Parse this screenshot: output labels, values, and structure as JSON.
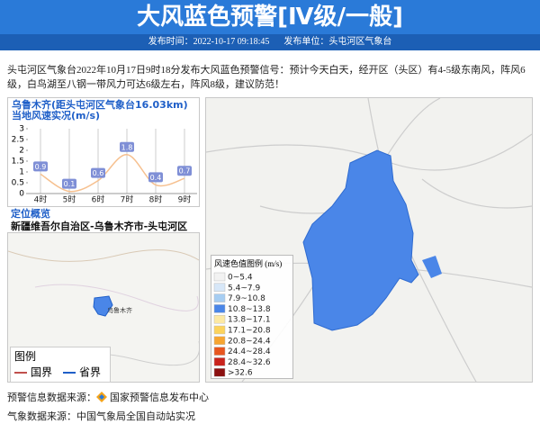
{
  "header": {
    "title": "大风蓝色预警[Ⅳ级/一般]",
    "publish_time": "发布时间：2022-10-17 09:18:45",
    "publisher": "发布单位：头屯河区气象台"
  },
  "body": "头屯河区气象台2022年10月17日9时18分发布大风蓝色预警信号：预计今天白天，经开区（头区）有4-5级东南风，阵风6级，白鸟湖至八钢一带风力可达6级左右，阵风8级，建议防范！",
  "chart_data": {
    "type": "line",
    "title": "乌鲁木齐(距头屯河区气象台16.03km)当地风速实况(m/s)",
    "categories": [
      "4时",
      "5时",
      "6时",
      "7时",
      "8时",
      "9时"
    ],
    "values": [
      0.9,
      0.1,
      0.6,
      1.8,
      0.4,
      0.7
    ],
    "color": "#f6c08f",
    "label_color": "#7f8fd6",
    "ylim": [
      0,
      3
    ],
    "yticks": [
      0,
      0.5,
      1,
      1.5,
      2,
      2.5,
      3
    ]
  },
  "location": {
    "title": "定位概览",
    "path": "新疆维吾尔自治区-乌鲁木齐市-头屯河区",
    "map_label": "乌鲁木齐",
    "legend_title": "图例",
    "legend": [
      {
        "label": "国界",
        "color": "#c0504d"
      },
      {
        "label": "省界",
        "color": "#1f5fc8"
      }
    ]
  },
  "wind_legend": {
    "title": "风速色值图例 (m/s)",
    "items": [
      {
        "label": "0~5.4",
        "color": "#f2f2f2"
      },
      {
        "label": "5.4~7.9",
        "color": "#d7e7f8"
      },
      {
        "label": "7.9~10.8",
        "color": "#a6cdf2"
      },
      {
        "label": "10.8~13.8",
        "color": "#4a86e8"
      },
      {
        "label": "13.8~17.1",
        "color": "#fde9a3"
      },
      {
        "label": "17.1~20.8",
        "color": "#fcd35c"
      },
      {
        "label": "20.8~24.4",
        "color": "#f7a530"
      },
      {
        "label": "24.4~28.4",
        "color": "#e8561f"
      },
      {
        "label": "28.4~32.6",
        "color": "#c9231c"
      },
      {
        "label": ">32.6",
        "color": "#8b1010"
      }
    ]
  },
  "footer": {
    "warning_source_label": "预警信息数据来源：",
    "warning_source": "国家预警信息发布中心",
    "weather_source": "气象数据来源：中国气象局全国自动站实况"
  }
}
